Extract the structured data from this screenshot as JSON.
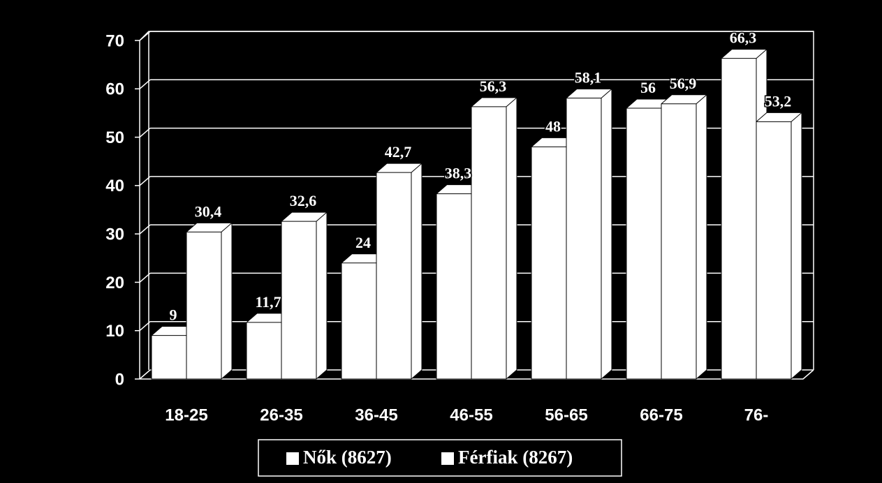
{
  "chart_data": {
    "type": "bar3d",
    "categories": [
      "18-25",
      "26-35",
      "36-45",
      "46-55",
      "56-65",
      "66-75",
      "76-"
    ],
    "series": [
      {
        "name": "Nők (8627)",
        "color": "#ffffff",
        "values": [
          9,
          11.7,
          24,
          38.3,
          48,
          56,
          66.3
        ],
        "value_labels": [
          "9",
          "11,7",
          "24",
          "38,3",
          "48",
          "56",
          "66,3"
        ]
      },
      {
        "name": "Férfiak (8267)",
        "color": "#ffffff",
        "values": [
          30.4,
          32.6,
          42.7,
          56.3,
          58.1,
          56.9,
          53.2
        ],
        "value_labels": [
          "30,4",
          "32,6",
          "42,7",
          "56,3",
          "58,1",
          "56,9",
          "53,2"
        ]
      }
    ],
    "ylim": [
      0,
      70
    ],
    "yticks": [
      0,
      10,
      20,
      30,
      40,
      50,
      60,
      70
    ],
    "grid": true,
    "legend": "bottom"
  }
}
